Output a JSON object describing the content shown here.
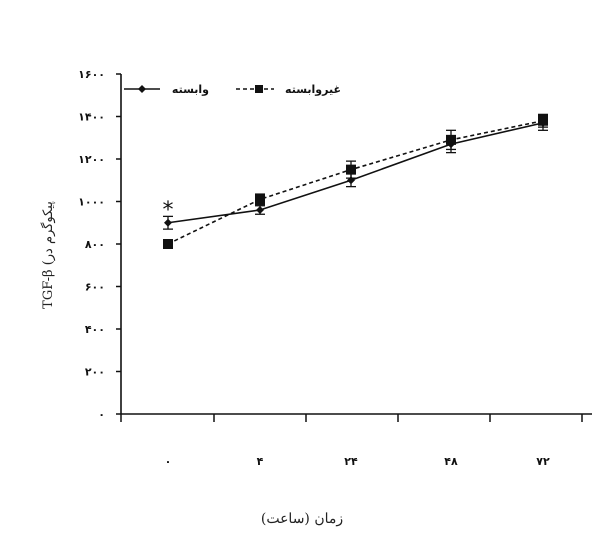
{
  "chart_data": {
    "type": "line",
    "x_ticks": [
      "۰",
      "۴",
      "۲۴",
      "۴۸",
      "۷۲"
    ],
    "y_ticks": [
      "۰",
      "۲۰۰",
      "۴۰۰",
      "۶۰۰",
      "۸۰۰",
      "۱۰۰۰",
      "۱۲۰۰",
      "۱۴۰۰",
      "۱۶۰۰"
    ],
    "y_tick_values": [
      0,
      200,
      400,
      600,
      800,
      1000,
      1200,
      1400,
      1600
    ],
    "ylim": [
      0,
      1600
    ],
    "xlabel": "زمان (ساعت)",
    "ylabel": "TGF-β (پیکوگرم در",
    "annotation": "*",
    "legend_position": "top-left",
    "grid": false,
    "series": [
      {
        "name": "وابسته",
        "marker": "diamond",
        "line_style": "solid",
        "color": "#111111",
        "values": [
          900,
          960,
          1100,
          1270,
          1370
        ],
        "errors": [
          30,
          20,
          30,
          40,
          35
        ]
      },
      {
        "name": "غیروابسته",
        "marker": "square",
        "line_style": "dashed",
        "color": "#111111",
        "values": [
          800,
          1010,
          1150,
          1290,
          1380
        ],
        "errors": [
          10,
          25,
          40,
          45,
          30
        ]
      }
    ]
  }
}
